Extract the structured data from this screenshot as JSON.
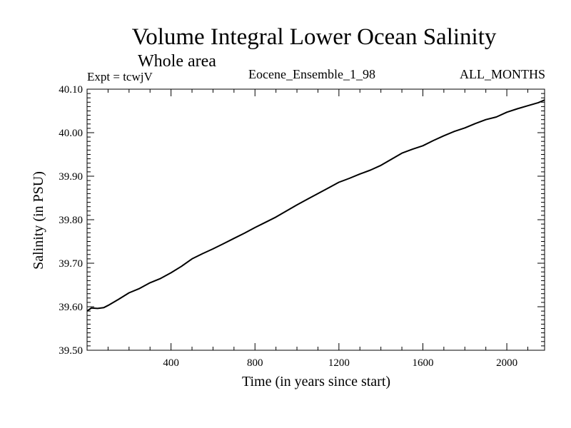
{
  "chart_data": {
    "type": "line",
    "title": "Volume Integral Lower Ocean Salinity",
    "subtitle": "Whole area",
    "annotations": {
      "expt": "Expt = tcwjV",
      "ensemble": "Eocene_Ensemble_1_98",
      "months": "ALL_MONTHS"
    },
    "xlabel": "Time (in years since start)",
    "ylabel": "Salinity (in PSU)",
    "xlim": [
      0,
      2180
    ],
    "ylim": [
      39.5,
      40.1
    ],
    "x_ticks": [
      400,
      800,
      1200,
      1600,
      2000
    ],
    "x_tick_labels": [
      "400",
      "800",
      "1200",
      "1600",
      "2000"
    ],
    "y_ticks": [
      39.5,
      39.6,
      39.7,
      39.8,
      39.9,
      40.0,
      40.1
    ],
    "y_tick_labels": [
      "39.50",
      "39.60",
      "39.70",
      "39.80",
      "39.90",
      "40.00",
      "40.10"
    ],
    "grid": false,
    "series": [
      {
        "x": [
          0,
          20,
          50,
          80,
          100,
          150,
          200,
          250,
          300,
          350,
          400,
          450,
          500,
          550,
          600,
          650,
          700,
          750,
          800,
          850,
          900,
          950,
          1000,
          1050,
          1100,
          1150,
          1200,
          1250,
          1300,
          1350,
          1400,
          1450,
          1500,
          1550,
          1600,
          1650,
          1700,
          1750,
          1800,
          1850,
          1900,
          1950,
          2000,
          2050,
          2100,
          2150,
          2180
        ],
        "y": [
          39.59,
          39.597,
          39.596,
          39.598,
          39.603,
          39.617,
          39.632,
          39.642,
          39.655,
          39.665,
          39.678,
          39.693,
          39.71,
          39.722,
          39.733,
          39.745,
          39.757,
          39.769,
          39.782,
          39.794,
          39.806,
          39.82,
          39.834,
          39.847,
          39.86,
          39.873,
          39.886,
          39.895,
          39.905,
          39.914,
          39.925,
          39.939,
          39.953,
          39.962,
          39.97,
          39.982,
          39.993,
          40.003,
          40.011,
          40.021,
          40.03,
          40.036,
          40.047,
          40.055,
          40.062,
          40.069,
          40.075
        ]
      }
    ]
  }
}
